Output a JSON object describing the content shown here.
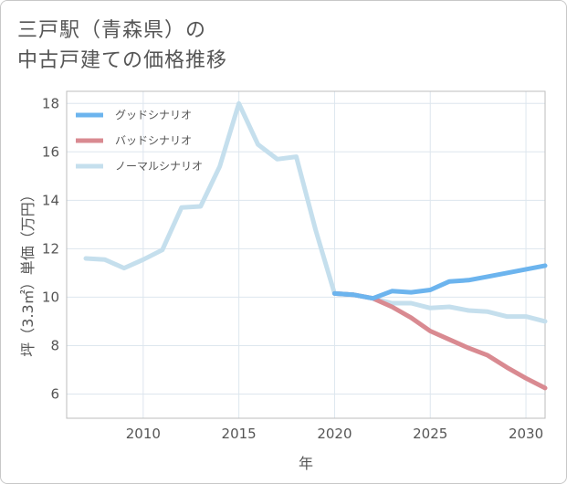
{
  "title_lines": [
    "三戸駅（青森県）の",
    "中古戸建ての価格推移"
  ],
  "chart_data": {
    "type": "line",
    "xlabel": "年",
    "ylabel": "坪（3.3㎡）単価（万円）",
    "xlim": [
      2006,
      2031
    ],
    "ylim": [
      5,
      18.5
    ],
    "x_ticks": [
      2010,
      2015,
      2020,
      2025,
      2030
    ],
    "y_ticks": [
      6,
      8,
      10,
      12,
      14,
      16,
      18
    ],
    "grid": true,
    "legend_position": "top-left",
    "series": [
      {
        "name": "グッドシナリオ",
        "color": "#6cb4ee",
        "x": [
          2020,
          2021,
          2022,
          2023,
          2024,
          2025,
          2026,
          2027,
          2028,
          2029,
          2030,
          2031
        ],
        "values": [
          10.15,
          10.1,
          9.95,
          10.25,
          10.2,
          10.3,
          10.65,
          10.7,
          10.85,
          11.0,
          11.15,
          11.3
        ]
      },
      {
        "name": "バッドシナリオ",
        "color": "#d98a91",
        "x": [
          2020,
          2021,
          2022,
          2023,
          2024,
          2025,
          2026,
          2027,
          2028,
          2029,
          2030,
          2031
        ],
        "values": [
          10.15,
          10.1,
          9.95,
          9.6,
          9.15,
          8.6,
          8.25,
          7.9,
          7.6,
          7.1,
          6.65,
          6.25
        ]
      },
      {
        "name": "ノーマルシナリオ",
        "color": "#c5dfed",
        "x": [
          2007,
          2008,
          2009,
          2010,
          2011,
          2012,
          2013,
          2014,
          2015,
          2016,
          2017,
          2018,
          2019,
          2020,
          2021,
          2022,
          2023,
          2024,
          2025,
          2026,
          2027,
          2028,
          2029,
          2030,
          2031
        ],
        "values": [
          11.6,
          11.55,
          11.2,
          11.55,
          11.95,
          13.7,
          13.75,
          15.4,
          18.0,
          16.3,
          15.7,
          15.8,
          12.8,
          10.15,
          10.1,
          9.95,
          9.75,
          9.75,
          9.55,
          9.6,
          9.45,
          9.4,
          9.2,
          9.2,
          9.0
        ]
      }
    ]
  }
}
